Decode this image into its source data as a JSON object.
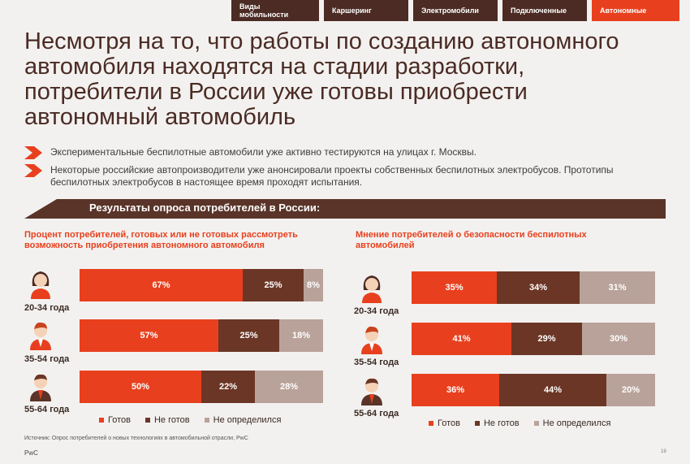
{
  "tabs": [
    {
      "label": "Виды мобильности",
      "active": false
    },
    {
      "label": "Каршеринг",
      "active": false
    },
    {
      "label": "Электромобили",
      "active": false
    },
    {
      "label": "Подключенные",
      "active": false
    },
    {
      "label": "Автономные",
      "active": true
    }
  ],
  "title": "Несмотря на то, что работы по созданию автономного автомобиля находятся на стадии разработки, потребители в России уже готовы приобрести автономный автомобиль",
  "bullets": [
    "Экспериментальные беспилотные автомобили уже активно тестируются на улицах г. Москвы.",
    "Некоторые российские автопроизводители уже анонсировали проекты собственных беспилотных электробусов. Прототипы беспилотных электробусов в настоящее время проходят испытания."
  ],
  "banner": "Результаты опроса потребителей в России:",
  "colors": {
    "ready": "#e8401e",
    "not_ready": "#6b3626",
    "undecided": "#b9a29a",
    "tab_bg": "#4b2b23",
    "text_dark": "#4a2b24"
  },
  "chart_data": [
    {
      "type": "bar",
      "title": "Процент потребителей, готовых или не готовых рассмотреть возможность приобретения автономного автомобиля",
      "categories": [
        "20-34 года",
        "35-54 года",
        "55-64 года"
      ],
      "series": [
        {
          "name": "Готов",
          "values": [
            67,
            57,
            50
          ]
        },
        {
          "name": "Не готов",
          "values": [
            25,
            25,
            22
          ]
        },
        {
          "name": "Не определился",
          "values": [
            8,
            18,
            28
          ]
        }
      ],
      "labels": [
        [
          "67%",
          "25%",
          "8%"
        ],
        [
          "57%",
          "25%",
          "18%"
        ],
        [
          "50%",
          "22%",
          "28%"
        ]
      ],
      "stacked": true,
      "orientation": "horizontal"
    },
    {
      "type": "bar",
      "title": "Мнение потребителей о безопасности беспилотных автомобилей",
      "categories": [
        "20-34 года",
        "35-54 года",
        "55-64 года"
      ],
      "series": [
        {
          "name": "Готов",
          "values": [
            35,
            41,
            36
          ]
        },
        {
          "name": "Не готов",
          "values": [
            34,
            29,
            44
          ]
        },
        {
          "name": "Не определился",
          "values": [
            31,
            30,
            20
          ]
        }
      ],
      "labels": [
        [
          "35%",
          "34%",
          "31%"
        ],
        [
          "41%",
          "29%",
          "30%"
        ],
        [
          "36%",
          "44%",
          "20%"
        ]
      ],
      "stacked": true,
      "orientation": "horizontal"
    }
  ],
  "legend": [
    "Готов",
    "Не готов",
    "Не определился"
  ],
  "footnote": "Источник: Опрос потребителей о новых технологиях в автомобильной отрасли, PwC",
  "brand": "PwC",
  "page_number": "19",
  "icons": [
    "person-female-icon",
    "person-male-icon",
    "person-senior-icon"
  ]
}
